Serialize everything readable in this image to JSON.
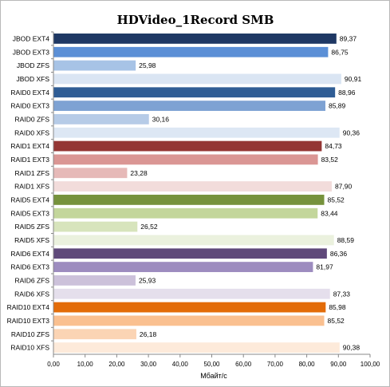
{
  "chart_data": {
    "type": "bar",
    "orientation": "horizontal",
    "title": "HDVideo_1Record SMB",
    "xlabel": "Мбайт/с",
    "ylabel": "",
    "xlim": [
      0,
      100
    ],
    "xticks": [
      "0,00",
      "10,00",
      "20,00",
      "30,00",
      "40,00",
      "50,00",
      "60,00",
      "70,00",
      "80,00",
      "90,00",
      "100,00"
    ],
    "grid": false,
    "legend": "none",
    "categories": [
      "JBOD EXT4",
      "JBOD EXT3",
      "JBOD ZFS",
      "JBOD XFS",
      "RAID0 EXT4",
      "RAID0 EXT3",
      "RAID0 ZFS",
      "RAID0 XFS",
      "RAID1 EXT4",
      "RAID1 EXT3",
      "RAID1 ZFS",
      "RAID1 XFS",
      "RAID5 EXT4",
      "RAID5 EXT3",
      "RAID5 ZFS",
      "RAID5 XFS",
      "RAID6 EXT4",
      "RAID6 EXT3",
      "RAID6 ZFS",
      "RAID6 XFS",
      "RAID10 EXT4",
      "RAID10 EXT3",
      "RAID10 ZFS",
      "RAID10 XFS"
    ],
    "values": [
      89.37,
      86.75,
      25.98,
      90.91,
      88.96,
      85.89,
      30.16,
      90.36,
      84.73,
      83.52,
      23.28,
      87.9,
      85.52,
      83.44,
      26.52,
      88.59,
      86.36,
      81.97,
      25.93,
      87.33,
      85.98,
      85.52,
      26.18,
      90.38
    ],
    "value_labels": [
      "89,37",
      "86,75",
      "25,98",
      "90,91",
      "88,96",
      "85,89",
      "30,16",
      "90,36",
      "84,73",
      "83,52",
      "23,28",
      "87,90",
      "85,52",
      "83,44",
      "26,52",
      "88,59",
      "86,36",
      "81,97",
      "25,93",
      "87,33",
      "85,98",
      "85,52",
      "26,18",
      "90,38"
    ],
    "colors": [
      "#1f3864",
      "#5b8fd6",
      "#a7c3e6",
      "#dae5f3",
      "#2f5d95",
      "#7ea2d3",
      "#b6cbe7",
      "#dde7f4",
      "#943634",
      "#da9694",
      "#e6b9b8",
      "#f2dcdb",
      "#76923c",
      "#c3d69b",
      "#d7e4bc",
      "#ebf1de",
      "#5f497a",
      "#9d8cbf",
      "#ccc1da",
      "#e5dfec",
      "#e36c09",
      "#fac090",
      "#fbd4b4",
      "#fdeada"
    ]
  }
}
